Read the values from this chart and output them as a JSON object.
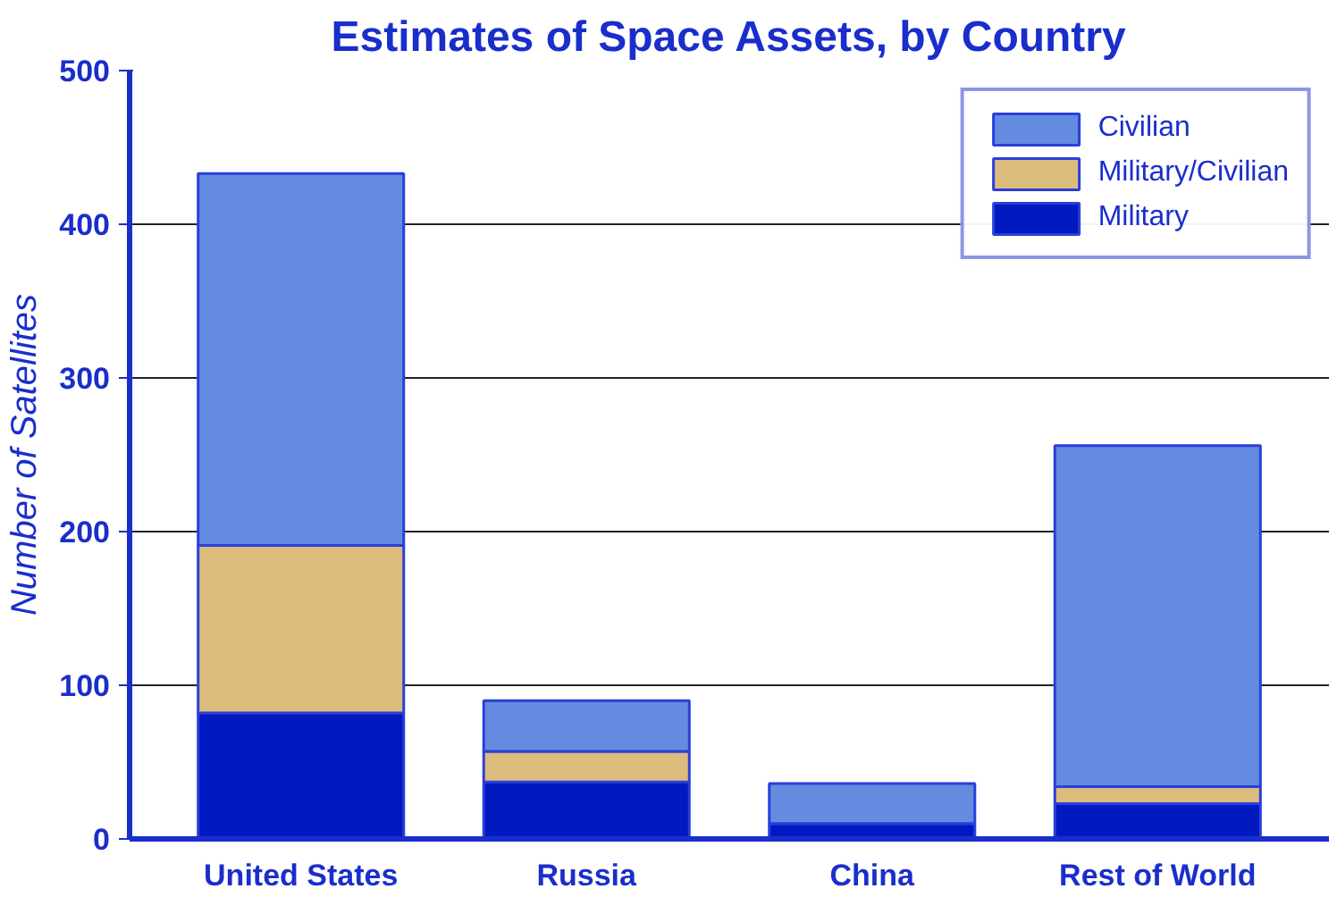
{
  "chart_data": {
    "type": "bar",
    "title": "Estimates of Space Assets, by Country",
    "ylabel": "Number of Satellites",
    "categories": [
      "United States",
      "Russia",
      "China",
      "Rest of World"
    ],
    "stacked": true,
    "series": [
      {
        "name": "Military",
        "color": "#0019c0",
        "values": [
          82,
          37,
          10,
          23
        ]
      },
      {
        "name": "Military/Civilian",
        "color": "#dcbc7c",
        "values": [
          109,
          20,
          0,
          11
        ]
      },
      {
        "name": "Civilian",
        "color": "#638be0",
        "values": [
          242,
          33,
          26,
          222
        ]
      }
    ],
    "ylim": [
      0,
      500
    ],
    "yticks": [
      0,
      100,
      200,
      300,
      400,
      500
    ],
    "grid": "y",
    "legend": "top right"
  }
}
